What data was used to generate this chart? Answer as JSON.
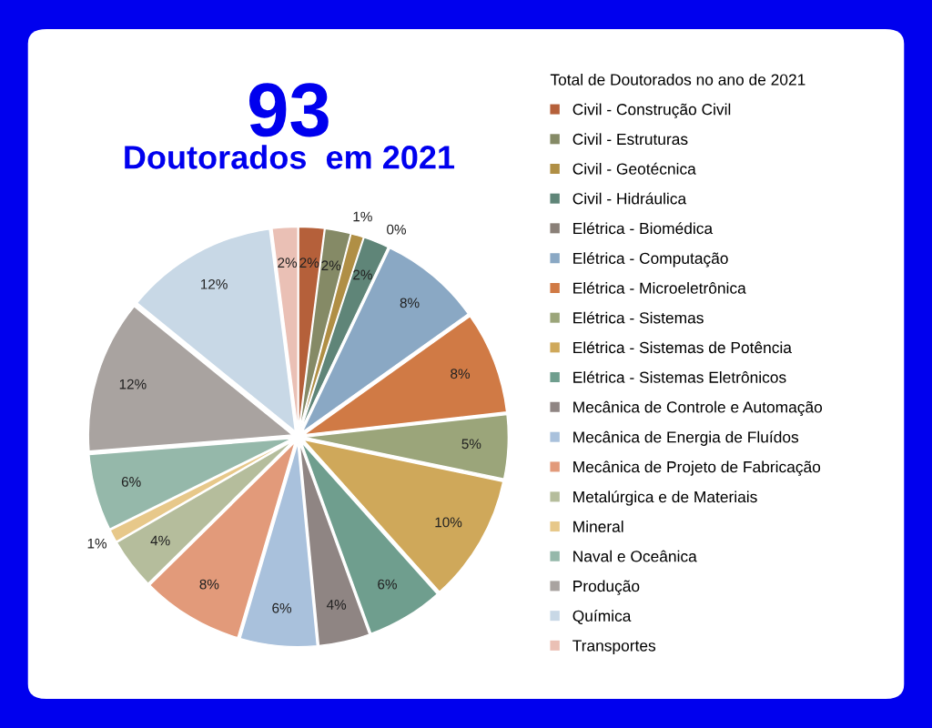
{
  "chart_data": {
    "type": "pie",
    "title": "93",
    "subtitle": "Doutorados  em 2021",
    "legend_title": "Total de Doutorados no ano de 2021",
    "legend": "right",
    "categories": [
      "Civil - Construção Civil",
      "Civil - Estruturas",
      "Civil - Geotécnica",
      "Civil - Hidráulica",
      "Elétrica - Biomédica",
      "Elétrica - Computação",
      "Elétrica - Microeletrônica",
      "Elétrica - Sistemas",
      "Elétrica - Sistemas de Potência",
      "Elétrica - Sistemas Eletrônicos",
      "Mecânica de Controle e Automação",
      "Mecânica de Energia de Fluídos",
      "Mecânica de Projeto de Fabricação",
      "Metalúrgica e de Materiais",
      "Mineral",
      "Naval e Oceânica",
      "Produção",
      "Química",
      "Transportes"
    ],
    "values": [
      2,
      2,
      1,
      2,
      0,
      8,
      8,
      5,
      10,
      6,
      4,
      6,
      8,
      4,
      1,
      6,
      12,
      12,
      2
    ],
    "value_labels": [
      "2%",
      "2%",
      "1%",
      "2%",
      "0%",
      "8%",
      "8%",
      "5%",
      "10%",
      "6%",
      "4%",
      "6%",
      "8%",
      "4%",
      "1%",
      "6%",
      "12%",
      "12%",
      "2%"
    ],
    "colors": [
      "#b5603a",
      "#858a66",
      "#b08f45",
      "#5f8578",
      "#8a8078",
      "#8aa8c4",
      "#d07a45",
      "#9ba57a",
      "#cfa85a",
      "#6f9e8e",
      "#8f8583",
      "#a9c1dc",
      "#e29a7a",
      "#b5bd9c",
      "#e7c88a",
      "#95b8aa",
      "#a9a3a0",
      "#c8d8e6",
      "#eac0b5"
    ]
  }
}
